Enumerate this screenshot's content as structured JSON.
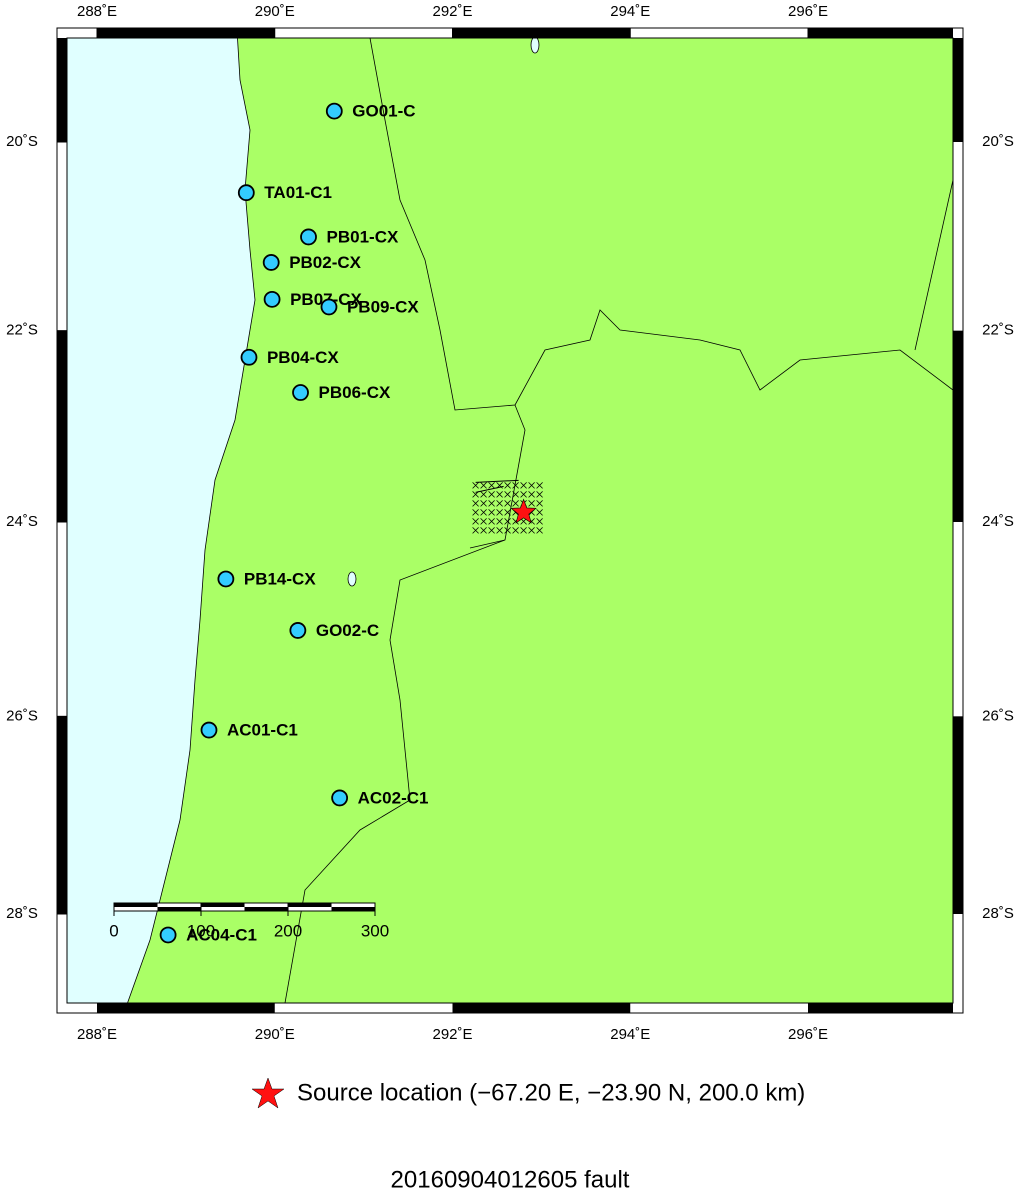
{
  "map": {
    "lon_ticks": [
      {
        "value": 288,
        "label": "288˚E"
      },
      {
        "value": 290,
        "label": "290˚E"
      },
      {
        "value": 292,
        "label": "292˚E"
      },
      {
        "value": 294,
        "label": "294˚E"
      },
      {
        "value": 296,
        "label": "296˚E"
      }
    ],
    "lat_ticks": [
      {
        "value": -20,
        "label": "20˚S"
      },
      {
        "value": -22,
        "label": "22˚S"
      },
      {
        "value": -24,
        "label": "24˚S"
      },
      {
        "value": -26,
        "label": "26˚S"
      },
      {
        "value": -28,
        "label": "28˚S"
      }
    ],
    "stations": [
      {
        "name": "GO01-C",
        "lon": 290.67,
        "lat": -19.67
      },
      {
        "name": "TA01-C1",
        "lon": 289.68,
        "lat": -20.54
      },
      {
        "name": "PB01-CX",
        "lon": 290.38,
        "lat": -21.01
      },
      {
        "name": "PB02-CX",
        "lon": 289.96,
        "lat": -21.28
      },
      {
        "name": "PB07-CX",
        "lon": 289.97,
        "lat": -21.67
      },
      {
        "name": "PB09-CX",
        "lon": 290.61,
        "lat": -21.75
      },
      {
        "name": "PB04-CX",
        "lon": 289.71,
        "lat": -22.28
      },
      {
        "name": "PB06-CX",
        "lon": 290.29,
        "lat": -22.65
      },
      {
        "name": "PB14-CX",
        "lon": 289.45,
        "lat": -24.59
      },
      {
        "name": "GO02-C",
        "lon": 290.26,
        "lat": -25.12
      },
      {
        "name": "AC01-C1",
        "lon": 289.26,
        "lat": -26.14
      },
      {
        "name": "AC02-C1",
        "lon": 290.73,
        "lat": -26.83
      },
      {
        "name": "AC04-C1",
        "lon": 288.8,
        "lat": -28.21
      }
    ],
    "source": {
      "lon": 292.8,
      "lat": -23.9
    },
    "scale_bar": [
      0,
      100,
      200,
      300
    ],
    "legend": "Source location (−67.20 E, −23.90 N, 200.0 km)",
    "title": "20160904012605 fault"
  }
}
